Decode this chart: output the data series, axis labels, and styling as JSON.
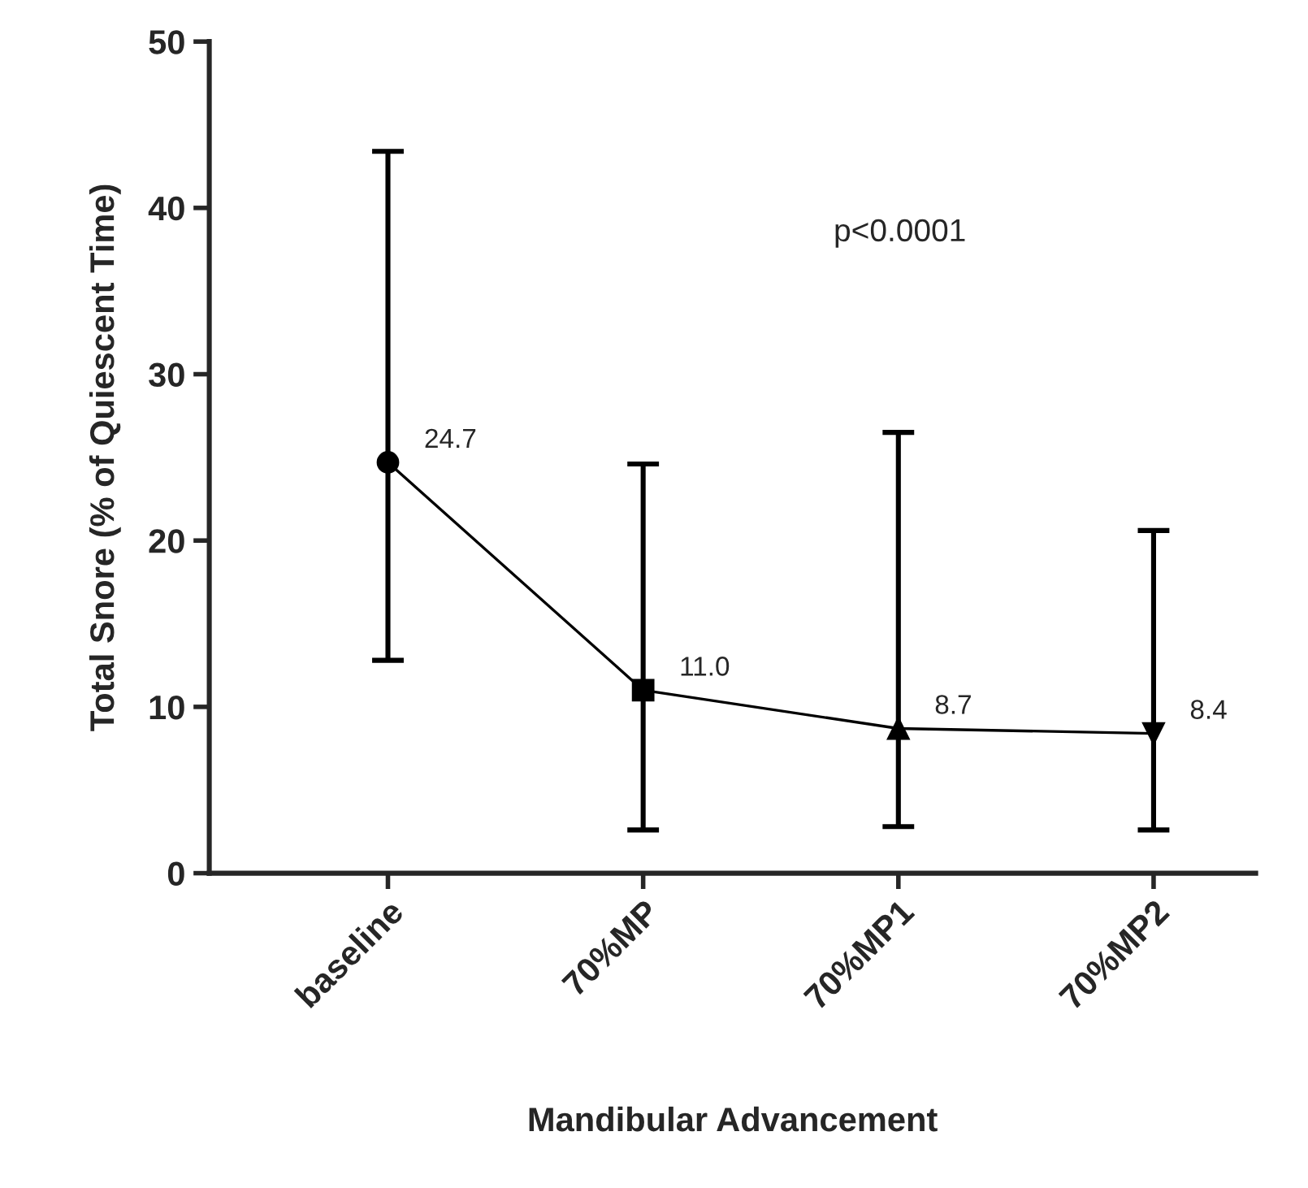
{
  "chart_data": {
    "type": "line",
    "xlabel": "Mandibular Advancement",
    "ylabel": "Total Snore (% of Quiescent Time)",
    "categories": [
      "baseline",
      "70%MP",
      "70%MP1",
      "70%MP2"
    ],
    "series": [
      {
        "color": "#000000",
        "values": [
          24.7,
          11.0,
          8.7,
          8.4
        ],
        "value_labels": [
          "24.7",
          "11.0",
          "8.7",
          "8.4"
        ],
        "marker": [
          "circle",
          "square",
          "triangle",
          "triangle-down"
        ],
        "errors": [
          [
            12.8,
            43.4
          ],
          [
            2.6,
            24.6
          ],
          [
            2.8,
            26.5
          ],
          [
            2.6,
            20.6
          ]
        ]
      }
    ],
    "ylim": [
      0,
      50
    ],
    "yticks": [
      0,
      10,
      20,
      30,
      40,
      50
    ],
    "annotations": [
      "p<0.0001"
    ],
    "grid": false,
    "legend": false,
    "line_style": "solid"
  }
}
